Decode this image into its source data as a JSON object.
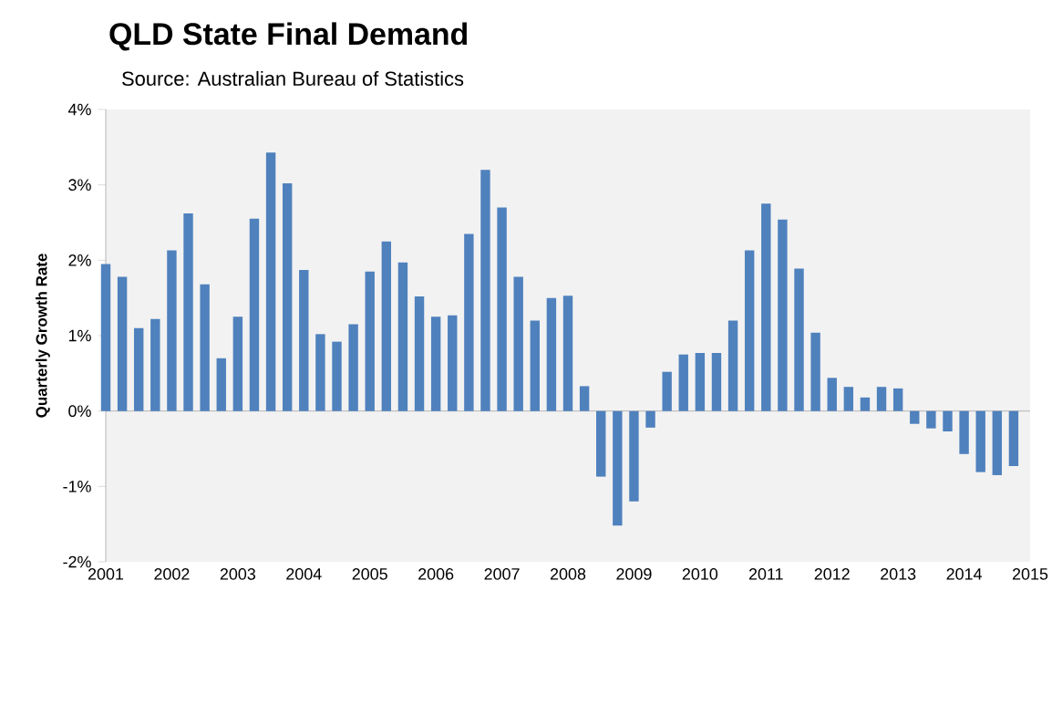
{
  "chart_data": {
    "type": "bar",
    "title": "QLD State Final Demand",
    "subtitle": "Source: Australian Bureau of Statistics",
    "ylabel": "Quarterly Growth Rate",
    "x": [
      2001,
      2001.25,
      2001.5,
      2001.75,
      2002,
      2002.25,
      2002.5,
      2002.75,
      2003,
      2003.25,
      2003.5,
      2003.75,
      2004,
      2004.25,
      2004.5,
      2004.75,
      2005,
      2005.25,
      2005.5,
      2005.75,
      2006,
      2006.25,
      2006.5,
      2006.75,
      2007,
      2007.25,
      2007.5,
      2007.75,
      2008,
      2008.25,
      2008.5,
      2008.75,
      2009,
      2009.25,
      2009.5,
      2009.75,
      2010,
      2010.25,
      2010.5,
      2010.75,
      2011,
      2011.25,
      2011.5,
      2011.75,
      2012,
      2012.25,
      2012.5,
      2012.75,
      2013,
      2013.25,
      2013.5,
      2013.75,
      2014,
      2014.25,
      2014.5,
      2014.75
    ],
    "values": [
      1.95,
      1.78,
      1.1,
      1.22,
      2.13,
      2.62,
      1.68,
      0.7,
      1.25,
      2.55,
      3.43,
      3.02,
      1.87,
      1.02,
      0.92,
      1.15,
      1.85,
      2.25,
      1.97,
      1.52,
      1.25,
      1.27,
      2.35,
      3.2,
      2.7,
      1.78,
      1.2,
      1.5,
      1.53,
      0.33,
      -0.87,
      -1.52,
      -1.2,
      -0.22,
      0.52,
      0.75,
      0.77,
      0.77,
      1.2,
      2.13,
      2.75,
      2.54,
      1.89,
      1.04,
      0.44,
      0.32,
      0.18,
      0.32,
      0.3,
      -0.17,
      -0.23,
      -0.27,
      -0.57,
      -0.81,
      -0.85,
      -0.73
    ],
    "color": "#4f81bd",
    "xlim": [
      2001,
      2015
    ],
    "xticks": [
      2001,
      2002,
      2003,
      2004,
      2005,
      2006,
      2007,
      2008,
      2009,
      2010,
      2011,
      2012,
      2013,
      2014,
      2015
    ],
    "ylim": [
      -2,
      4
    ],
    "yticks": [
      {
        "value": -2,
        "label": "-2%"
      },
      {
        "value": -1,
        "label": "-1%"
      },
      {
        "value": 0,
        "label": "0%"
      },
      {
        "value": 1,
        "label": "1%"
      },
      {
        "value": 2,
        "label": "2%"
      },
      {
        "value": 3,
        "label": "3%"
      },
      {
        "value": 4,
        "label": "4%"
      }
    ]
  }
}
